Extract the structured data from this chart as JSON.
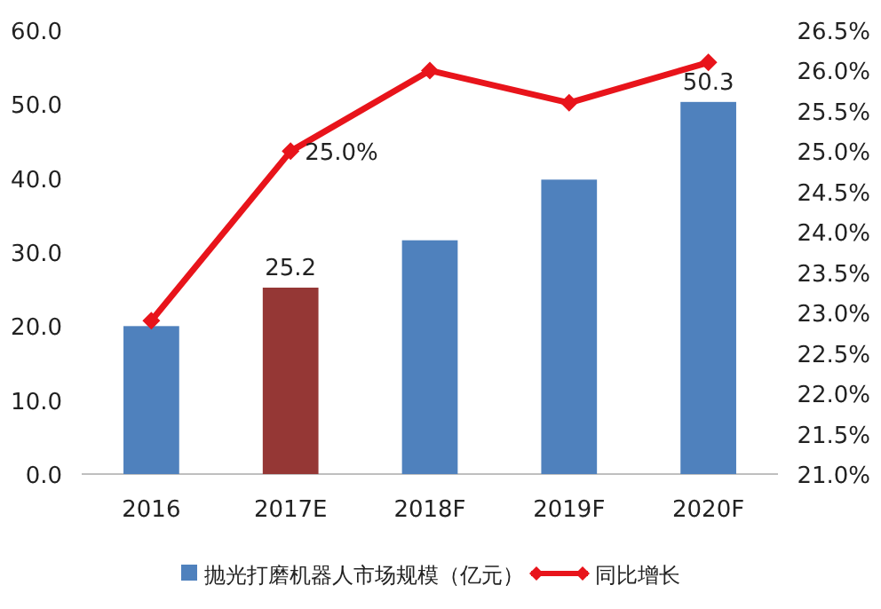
{
  "chart_data": {
    "type": "bar",
    "categories": [
      "2016",
      "2017E",
      "2018F",
      "2019F",
      "2020F"
    ],
    "series": [
      {
        "name": "抛光打磨机器人市场规模（亿元）",
        "color": "#4f81bd",
        "colors": [
          "#4f81bd",
          "#953735",
          "#4f81bd",
          "#4f81bd",
          "#4f81bd"
        ],
        "values": [
          20.0,
          25.2,
          31.6,
          39.8,
          50.3
        ],
        "value_labels": [
          null,
          "25.2",
          null,
          null,
          "50.3"
        ]
      },
      {
        "name": "同比增长",
        "type": "line",
        "axis": "y2",
        "color": "#e8141b",
        "marker": "diamond",
        "values": [
          22.9,
          25.0,
          26.0,
          25.6,
          26.1
        ],
        "value_labels": [
          null,
          "25.0%",
          null,
          null,
          null
        ]
      }
    ],
    "ylim": [
      0,
      60
    ],
    "yticks": [
      {
        "value": 0,
        "label": "0.0"
      },
      {
        "value": 10,
        "label": "10.0"
      },
      {
        "value": 20,
        "label": "20.0"
      },
      {
        "value": 30,
        "label": "30.0"
      },
      {
        "value": 40,
        "label": "40.0"
      },
      {
        "value": 50,
        "label": "50.0"
      },
      {
        "value": 60,
        "label": "60.0"
      }
    ],
    "y2lim": [
      21,
      26.5
    ],
    "y2ticks": [
      {
        "value": 21,
        "label": "21.0%"
      },
      {
        "value": 21.5,
        "label": "21.5%"
      },
      {
        "value": 22,
        "label": "22.0%"
      },
      {
        "value": 22.5,
        "label": "22.5%"
      },
      {
        "value": 23,
        "label": "23.0%"
      },
      {
        "value": 23.5,
        "label": "23.5%"
      },
      {
        "value": 24,
        "label": "24.0%"
      },
      {
        "value": 24.5,
        "label": "24.5%"
      },
      {
        "value": 25,
        "label": "25.0%"
      },
      {
        "value": 25.5,
        "label": "25.5%"
      },
      {
        "value": 26,
        "label": "26.0%"
      },
      {
        "value": 26.5,
        "label": "26.5%"
      }
    ],
    "legend": "bottom"
  }
}
